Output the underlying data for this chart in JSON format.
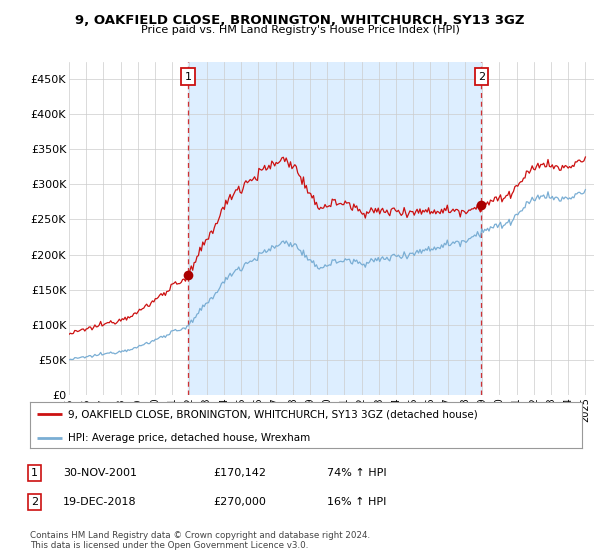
{
  "title": "9, OAKFIELD CLOSE, BRONINGTON, WHITCHURCH, SY13 3GZ",
  "subtitle": "Price paid vs. HM Land Registry's House Price Index (HPI)",
  "ylabel_ticks": [
    "£0",
    "£50K",
    "£100K",
    "£150K",
    "£200K",
    "£250K",
    "£300K",
    "£350K",
    "£400K",
    "£450K"
  ],
  "ytick_values": [
    0,
    50000,
    100000,
    150000,
    200000,
    250000,
    300000,
    350000,
    400000,
    450000
  ],
  "ylim": [
    0,
    475000
  ],
  "xlim_start": 1995.0,
  "xlim_end": 2025.5,
  "sale1_date": 2001.917,
  "sale1_price": 170142,
  "sale1_label": "1",
  "sale2_date": 2018.958,
  "sale2_price": 270000,
  "sale2_label": "2",
  "legend_line1": "9, OAKFIELD CLOSE, BRONINGTON, WHITCHURCH, SY13 3GZ (detached house)",
  "legend_line2": "HPI: Average price, detached house, Wrexham",
  "table_row1_num": "1",
  "table_row1_date": "30-NOV-2001",
  "table_row1_price": "£170,142",
  "table_row1_hpi": "74% ↑ HPI",
  "table_row2_num": "2",
  "table_row2_date": "19-DEC-2018",
  "table_row2_price": "£270,000",
  "table_row2_hpi": "16% ↑ HPI",
  "footnote": "Contains HM Land Registry data © Crown copyright and database right 2024.\nThis data is licensed under the Open Government Licence v3.0.",
  "hpi_color": "#7aaed4",
  "price_color": "#cc1111",
  "shade_color": "#ddeeff",
  "sale_marker_color": "#aa0000",
  "vline_color": "#cc1111",
  "background_color": "#ffffff",
  "grid_color": "#cccccc"
}
